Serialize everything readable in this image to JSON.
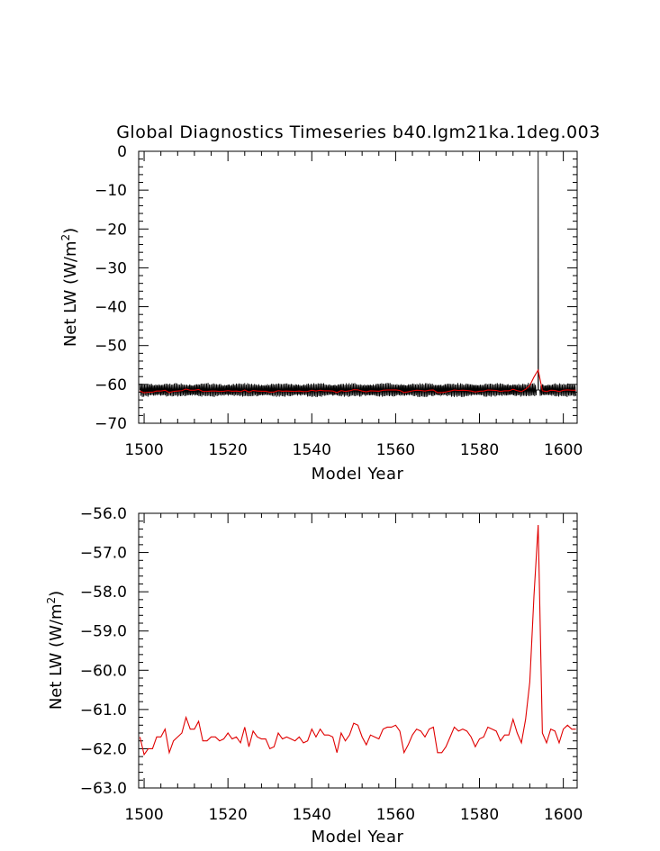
{
  "title": "Global Diagnostics Timeseries b40.lgm21ka.1deg.003",
  "colors": {
    "monthly": "#000000",
    "annual": "#e00000",
    "axis": "#000000"
  },
  "chart_data": [
    {
      "type": "line",
      "xlabel": "Model Year",
      "ylabel": "Net LW (W/m²)",
      "xlim": [
        1498.7,
        1603.3
      ],
      "ylim": [
        -70,
        0
      ],
      "xticks": [
        "1500",
        "1520",
        "1540",
        "1560",
        "1580",
        "1600"
      ],
      "xtick_values": [
        1500,
        1520,
        1540,
        1560,
        1580,
        1600
      ],
      "yticks": [
        "0",
        "−10",
        "−20",
        "−30",
        "−40",
        "−50",
        "−60",
        "−70"
      ],
      "ytick_values": [
        0,
        -10,
        -20,
        -30,
        -40,
        -50,
        -60,
        -70
      ],
      "series": [
        {
          "style": "monthly",
          "color": "#000000",
          "description": "monthly values oscillating roughly between -63.5 and -59.5 with an isolated spike to 0 at year 1594",
          "x_start": 1499,
          "x_end": 1603,
          "points_per_year": 3,
          "low": -63.3,
          "high": -59.6,
          "spike": {
            "x": 1594,
            "y": 0
          }
        },
        {
          "style": "annual",
          "color": "#e00000",
          "x": [
            1499,
            1500,
            1501,
            1502,
            1503,
            1504,
            1505,
            1506,
            1507,
            1508,
            1509,
            1510,
            1511,
            1512,
            1513,
            1514,
            1515,
            1516,
            1517,
            1518,
            1519,
            1520,
            1521,
            1522,
            1523,
            1524,
            1525,
            1526,
            1527,
            1528,
            1529,
            1530,
            1531,
            1532,
            1533,
            1534,
            1535,
            1536,
            1537,
            1538,
            1539,
            1540,
            1541,
            1542,
            1543,
            1544,
            1545,
            1546,
            1547,
            1548,
            1549,
            1550,
            1551,
            1552,
            1553,
            1554,
            1555,
            1556,
            1557,
            1558,
            1559,
            1560,
            1561,
            1562,
            1563,
            1564,
            1565,
            1566,
            1567,
            1568,
            1569,
            1570,
            1571,
            1572,
            1573,
            1574,
            1575,
            1576,
            1577,
            1578,
            1579,
            1580,
            1581,
            1582,
            1583,
            1584,
            1585,
            1586,
            1587,
            1588,
            1589,
            1590,
            1591,
            1592,
            1593,
            1594,
            1595,
            1596,
            1597,
            1598,
            1599,
            1600,
            1601,
            1602,
            1603
          ],
          "values": [
            -61.7,
            -62.15,
            -62.0,
            -62.0,
            -61.7,
            -61.7,
            -61.5,
            -62.1,
            -61.8,
            -61.7,
            -61.6,
            -61.2,
            -61.5,
            -61.5,
            -61.3,
            -61.8,
            -61.8,
            -61.7,
            -61.7,
            -61.8,
            -61.75,
            -61.6,
            -61.75,
            -61.7,
            -61.85,
            -61.45,
            -61.95,
            -61.55,
            -61.7,
            -61.75,
            -61.75,
            -62.0,
            -61.95,
            -61.6,
            -61.75,
            -61.7,
            -61.75,
            -61.8,
            -61.7,
            -61.85,
            -61.8,
            -61.5,
            -61.7,
            -61.5,
            -61.65,
            -61.65,
            -61.7,
            -62.1,
            -61.6,
            -61.8,
            -61.65,
            -61.35,
            -61.4,
            -61.7,
            -61.9,
            -61.65,
            -61.7,
            -61.75,
            -61.5,
            -61.45,
            -61.45,
            -61.4,
            -61.55,
            -62.1,
            -61.9,
            -61.65,
            -61.5,
            -61.55,
            -61.7,
            -61.5,
            -61.45,
            -62.1,
            -62.1,
            -61.95,
            -61.7,
            -61.45,
            -61.55,
            -61.5,
            -61.55,
            -61.7,
            -61.95,
            -61.75,
            -61.7,
            -61.45,
            -61.5,
            -61.55,
            -61.8,
            -61.65,
            -61.65,
            -61.25,
            -61.6,
            -61.85,
            -61.25,
            -60.3,
            -58.1,
            -56.3,
            -61.6,
            -61.85,
            -61.5,
            -61.55,
            -61.85,
            -61.5,
            -61.4,
            -61.5,
            -61.5
          ]
        }
      ]
    },
    {
      "type": "line",
      "xlabel": "Model Year",
      "ylabel": "Net LW (W/m²)",
      "xlim": [
        1498.7,
        1603.3
      ],
      "ylim": [
        -63,
        -56
      ],
      "xticks": [
        "1500",
        "1520",
        "1540",
        "1560",
        "1580",
        "1600"
      ],
      "xtick_values": [
        1500,
        1520,
        1540,
        1560,
        1580,
        1600
      ],
      "yticks": [
        "−56.0",
        "−57.0",
        "−58.0",
        "−59.0",
        "−60.0",
        "−61.0",
        "−62.0",
        "−63.0"
      ],
      "ytick_values": [
        -56,
        -57,
        -58,
        -59,
        -60,
        -61,
        -62,
        -63
      ],
      "series": [
        {
          "style": "annual",
          "color": "#e00000",
          "same_as_panel_1_annual": true
        }
      ]
    }
  ]
}
